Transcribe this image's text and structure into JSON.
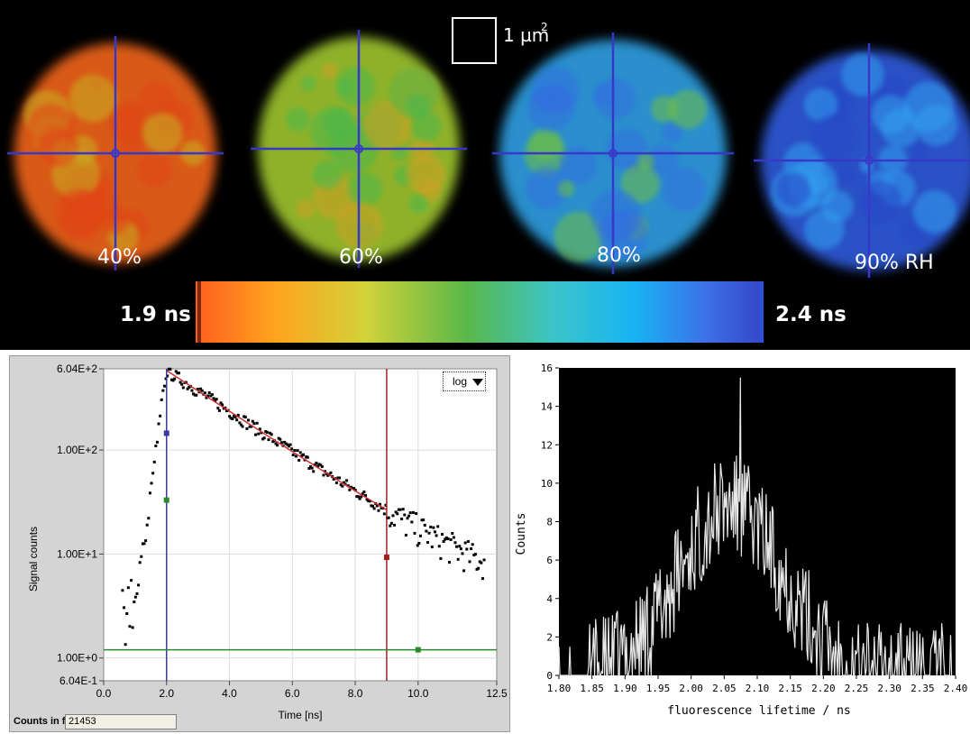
{
  "top": {
    "scale_label": "1 µm",
    "scale_sup": "2",
    "images": [
      {
        "label": "40%",
        "c1": "#ff6a1a",
        "c2": "#e04414",
        "c3": "#c8b020"
      },
      {
        "label": "60%",
        "c1": "#a8d030",
        "c2": "#48b84c",
        "c3": "#d0a020"
      },
      {
        "label": "80%",
        "c1": "#30a8f0",
        "c2": "#3070e0",
        "c3": "#70c040"
      },
      {
        "label": "90% RH",
        "c1": "#3060e8",
        "c2": "#30a0f0",
        "c3": "#2848c8"
      }
    ],
    "colorbar": {
      "min_label": "1.9 ns",
      "max_label": "2.4 ns",
      "colors": [
        "#ff5e1e",
        "#ffa41e",
        "#d2d23a",
        "#58b84a",
        "#3cc4c8",
        "#18b4f4",
        "#3c70e6",
        "#3446c8"
      ]
    }
  },
  "decay_plot": {
    "ylabel": "Signal counts",
    "xlabel": "Time [ns]",
    "scale_button": "log",
    "counts_label": "Counts in fit",
    "counts_value": "21453",
    "y_ticks": [
      "6.04E+2",
      "1.00E+2",
      "1.00E+1",
      "1.00E+0",
      "6.04E-1"
    ],
    "x_ticks": [
      "0.0",
      "2.0",
      "4.0",
      "6.0",
      "8.0",
      "10.0",
      "12.5"
    ],
    "marker_start_ns": 2.0,
    "marker_end_ns": 9.0,
    "baseline_counts": 1.2
  },
  "chart_data": [
    {
      "type": "scatter",
      "xlabel": "Time [ns]",
      "ylabel": "Signal counts",
      "xlim": [
        0,
        12.5
      ],
      "ylim": [
        0.604,
        604
      ],
      "log_y": true,
      "fit": {
        "x_start": 2.0,
        "x_end": 9.0,
        "peak_counts": 580,
        "decay_ns": 2.2
      }
    },
    {
      "type": "line",
      "xlabel": "fluorescence lifetime / ns",
      "ylabel": "Counts",
      "xlim": [
        1.8,
        2.4
      ],
      "ylim": [
        0,
        16
      ],
      "x_ticks": [
        "1.80",
        "1.85",
        "1.90",
        "1.95",
        "2.00",
        "2.05",
        "2.10",
        "2.15",
        "2.20",
        "2.25",
        "2.30",
        "2.35",
        "2.40"
      ],
      "y_ticks": [
        "0",
        "2",
        "4",
        "6",
        "8",
        "10",
        "12",
        "14",
        "16"
      ],
      "peak": {
        "x": 2.075,
        "y": 16
      }
    }
  ]
}
